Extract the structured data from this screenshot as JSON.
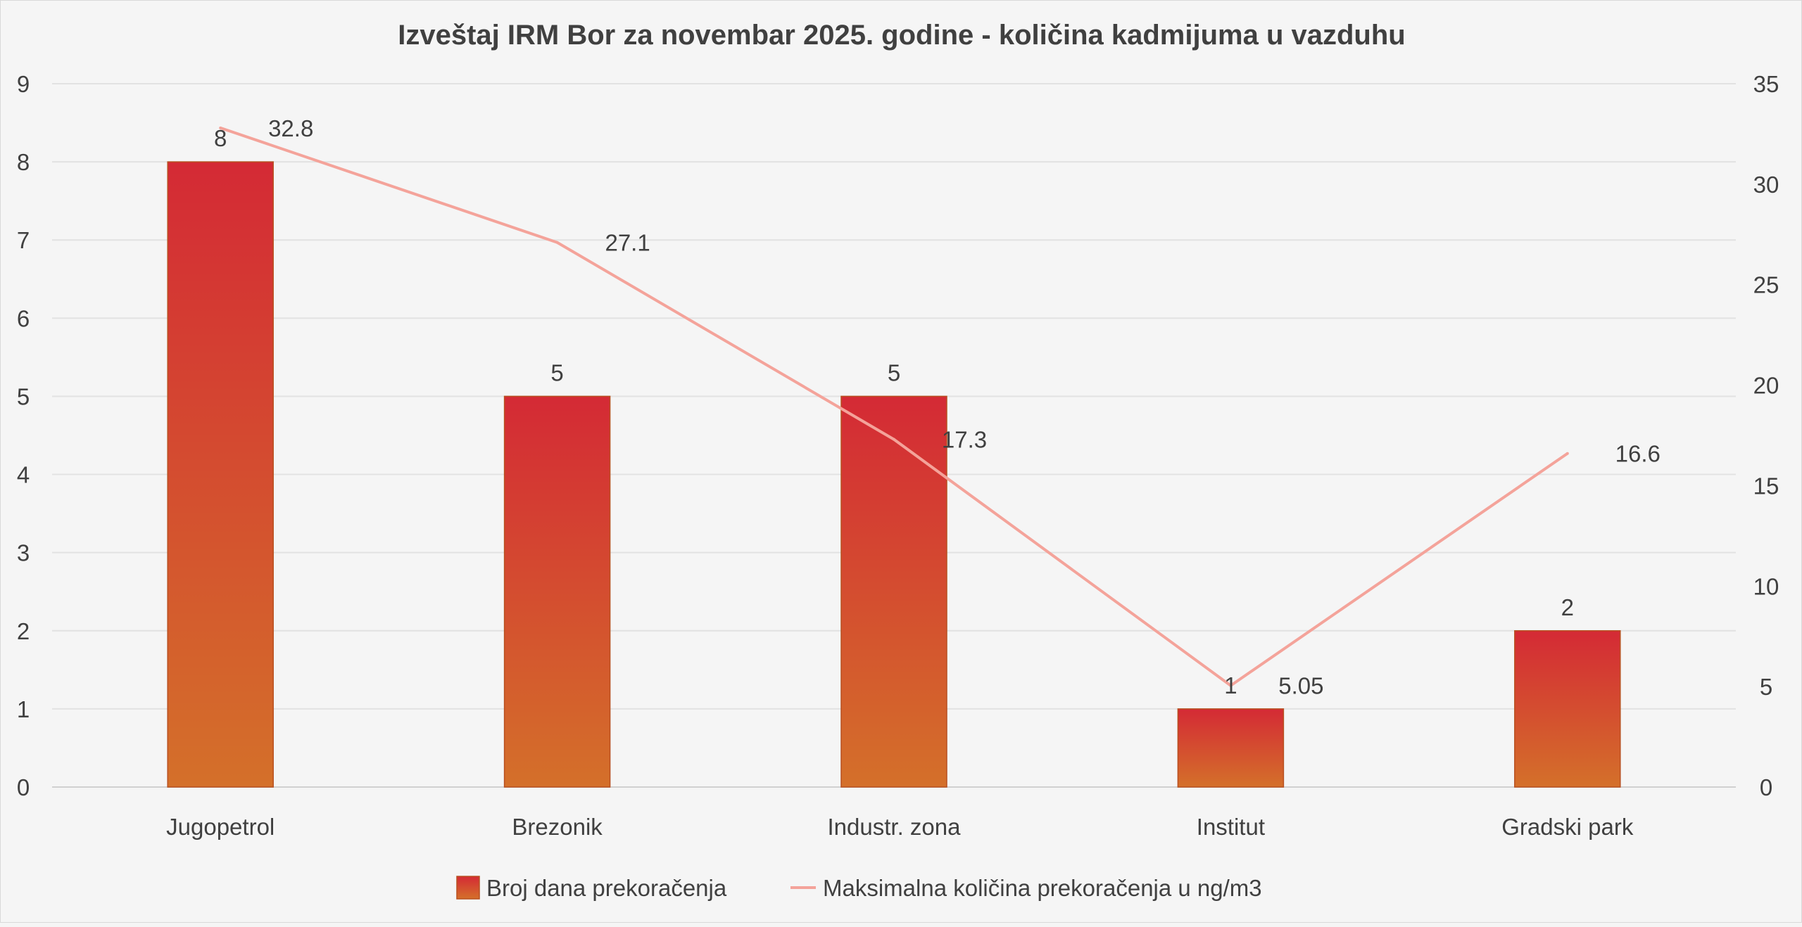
{
  "chart_data": {
    "type": "bar+line",
    "title": "Izveštaj IRM Bor za novembar 2025. godine - količina kadmijuma u vazduhu",
    "categories": [
      "Jugopetrol",
      "Brezonik",
      "Industr. zona",
      "Institut",
      "Gradski park"
    ],
    "series": [
      {
        "name": "Broj dana prekoračenja",
        "type": "bar",
        "axis": "left",
        "values": [
          8,
          5,
          5,
          1,
          2
        ],
        "labels": [
          "8",
          "5",
          "5",
          "1",
          "2"
        ],
        "color_top": "#d42a35",
        "color_bottom": "#d4702a"
      },
      {
        "name": "Maksimalna količina prekoračenja u ng/m3",
        "type": "line",
        "axis": "right",
        "values": [
          32.8,
          27.1,
          17.3,
          5.05,
          16.6
        ],
        "labels": [
          "32.8",
          "27.1",
          "17.3",
          "5.05",
          "16.6"
        ],
        "color": "#f4a39a"
      }
    ],
    "y_left": {
      "range": [
        0,
        9
      ],
      "ticks": [
        "0",
        "1",
        "2",
        "3",
        "4",
        "5",
        "6",
        "7",
        "8",
        "9"
      ]
    },
    "y_right": {
      "range": [
        0,
        35
      ],
      "ticks": [
        "0",
        "5",
        "10",
        "15",
        "20",
        "25",
        "30",
        "35"
      ]
    },
    "grid": true,
    "legend": "bottom"
  }
}
